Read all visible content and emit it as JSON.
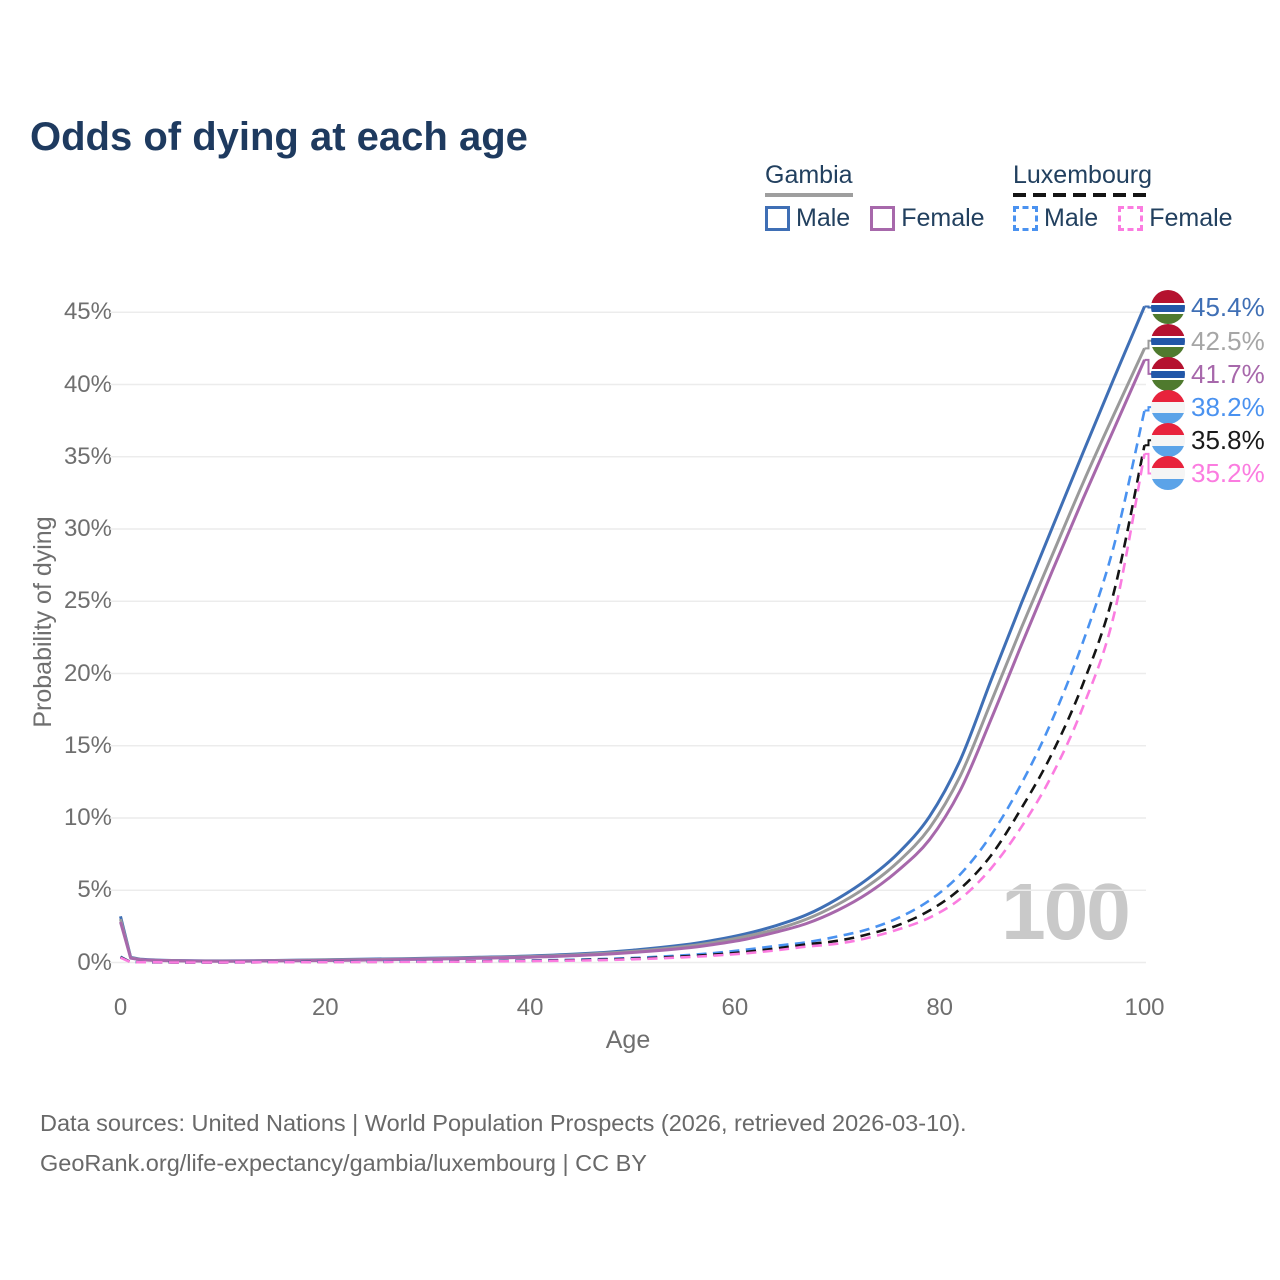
{
  "title": "Odds of dying at each age",
  "watermark": "100",
  "legend": {
    "groups": [
      {
        "label": "Gambia",
        "underline_style": "solid",
        "underline_color": "#9e9e9e",
        "items": [
          {
            "label": "Male",
            "color": "#3f6fb5",
            "dashed": false
          },
          {
            "label": "Female",
            "color": "#a768ab",
            "dashed": false
          }
        ]
      },
      {
        "label": "Luxembourg",
        "underline_style": "dashed",
        "underline_color": "#141414",
        "items": [
          {
            "label": "Male",
            "color": "#4a92f0",
            "dashed": true
          },
          {
            "label": "Female",
            "color": "#fb7ce0",
            "dashed": true
          }
        ]
      }
    ]
  },
  "footer": {
    "line1": "Data sources: United Nations | World Population Prospects (2026, retrieved 2026-03-10).",
    "line2": "GeoRank.org/life-expectancy/gambia/luxembourg | CC BY"
  },
  "flags": {
    "gambia": {
      "stripes": [
        [
          "#b5122f",
          36
        ],
        [
          "#ffffff",
          6
        ],
        [
          "#2257a8",
          21
        ],
        [
          "#ffffff",
          6
        ],
        [
          "#4f7a2e",
          31
        ]
      ]
    },
    "luxembourg": {
      "stripes": [
        [
          "#e8233c",
          34
        ],
        [
          "#f5f5f5",
          33
        ],
        [
          "#5ba3e8",
          33
        ]
      ]
    }
  },
  "chart_data": {
    "type": "line",
    "title": "Odds of dying at each age",
    "xlabel": "Age",
    "ylabel": "Probability of dying",
    "xlim": [
      0,
      100
    ],
    "ylim": [
      0,
      45.4
    ],
    "grid": "horizontal",
    "gridline_color": "#ececec",
    "legend_position": "top-right",
    "x_ticks": [
      {
        "value": 0,
        "label": "0"
      },
      {
        "value": 20,
        "label": "20"
      },
      {
        "value": 40,
        "label": "40"
      },
      {
        "value": 60,
        "label": "60"
      },
      {
        "value": 80,
        "label": "80"
      },
      {
        "value": 100,
        "label": "100"
      }
    ],
    "y_ticks": [
      {
        "value": 0,
        "label": "0%"
      },
      {
        "value": 5,
        "label": "5%"
      },
      {
        "value": 10,
        "label": "10%"
      },
      {
        "value": 15,
        "label": "15%"
      },
      {
        "value": 20,
        "label": "20%"
      },
      {
        "value": 25,
        "label": "25%"
      },
      {
        "value": 30,
        "label": "30%"
      },
      {
        "value": 35,
        "label": "35%"
      },
      {
        "value": 40,
        "label": "40%"
      },
      {
        "value": 45,
        "label": "45%"
      }
    ],
    "ages": [
      0,
      1,
      2,
      5,
      10,
      15,
      20,
      25,
      30,
      35,
      40,
      45,
      50,
      55,
      58,
      61,
      64,
      67,
      70,
      73,
      76,
      79,
      82,
      85,
      88,
      91,
      94,
      97,
      100
    ],
    "series": [
      {
        "name": "Gambia Male",
        "country": "Gambia",
        "sex": "Male",
        "flag": "gambia",
        "color": "#3f6fb5",
        "label_color": "#3f6fb5",
        "dashed": false,
        "end_label": "45.4%",
        "values": [
          3.2,
          0.35,
          0.22,
          0.14,
          0.11,
          0.14,
          0.19,
          0.24,
          0.29,
          0.36,
          0.45,
          0.6,
          0.85,
          1.22,
          1.55,
          1.98,
          2.55,
          3.3,
          4.4,
          5.8,
          7.6,
          10.1,
          14.0,
          19.5,
          24.9,
          30.1,
          35.3,
          40.4,
          45.4
        ]
      },
      {
        "name": "Gambia Both Sexes",
        "country": "Gambia",
        "sex": "Both",
        "flag": "gambia",
        "color": "#9a9a9a",
        "label_color": "#a6a6a6",
        "dashed": false,
        "end_label": "42.5%",
        "values": [
          3.0,
          0.32,
          0.2,
          0.13,
          0.1,
          0.13,
          0.17,
          0.21,
          0.26,
          0.33,
          0.41,
          0.55,
          0.77,
          1.1,
          1.4,
          1.8,
          2.3,
          3.0,
          4.0,
          5.3,
          7.0,
          9.3,
          12.9,
          18.0,
          23.2,
          28.2,
          33.2,
          37.9,
          42.5
        ]
      },
      {
        "name": "Gambia Female",
        "country": "Gambia",
        "sex": "Female",
        "flag": "gambia",
        "color": "#a768ab",
        "label_color": "#a768ab",
        "dashed": false,
        "end_label": "41.7%",
        "values": [
          2.8,
          0.3,
          0.19,
          0.12,
          0.09,
          0.11,
          0.14,
          0.18,
          0.23,
          0.29,
          0.37,
          0.49,
          0.69,
          0.98,
          1.25,
          1.6,
          2.1,
          2.7,
          3.6,
          4.8,
          6.4,
          8.5,
          11.9,
          16.8,
          22.0,
          27.1,
          32.1,
          36.9,
          41.7
        ]
      },
      {
        "name": "Luxembourg Male",
        "country": "Luxembourg",
        "sex": "Male",
        "flag": "luxembourg",
        "color": "#4a92f0",
        "label_color": "#4a92f0",
        "dashed": true,
        "end_label": "38.2%",
        "values": [
          0.4,
          0.03,
          0.02,
          0.01,
          0.01,
          0.03,
          0.06,
          0.07,
          0.08,
          0.1,
          0.14,
          0.2,
          0.31,
          0.5,
          0.66,
          0.88,
          1.15,
          1.4,
          1.8,
          2.3,
          3.1,
          4.3,
          6.1,
          8.8,
          12.4,
          16.8,
          22.2,
          28.8,
          38.2
        ]
      },
      {
        "name": "Luxembourg Both Sexes",
        "country": "Luxembourg",
        "sex": "Both",
        "flag": "luxembourg",
        "color": "#141414",
        "label_color": "#1a1a1a",
        "dashed": true,
        "end_label": "35.8%",
        "values": [
          0.37,
          0.03,
          0.02,
          0.01,
          0.01,
          0.02,
          0.04,
          0.05,
          0.06,
          0.08,
          0.12,
          0.17,
          0.26,
          0.42,
          0.55,
          0.73,
          0.97,
          1.25,
          1.5,
          1.95,
          2.6,
          3.6,
          5.1,
          7.4,
          10.7,
          14.5,
          19.3,
          25.6,
          35.8
        ]
      },
      {
        "name": "Luxembourg Female",
        "country": "Luxembourg",
        "sex": "Female",
        "flag": "luxembourg",
        "color": "#fb7ce0",
        "label_color": "#fb7ce0",
        "dashed": true,
        "end_label": "35.2%",
        "values": [
          0.33,
          0.02,
          0.02,
          0.01,
          0.01,
          0.02,
          0.03,
          0.04,
          0.05,
          0.07,
          0.1,
          0.14,
          0.22,
          0.36,
          0.48,
          0.63,
          0.84,
          1.1,
          1.3,
          1.7,
          2.3,
          3.1,
          4.4,
          6.5,
          9.4,
          13.0,
          17.7,
          24.0,
          35.2
        ]
      }
    ]
  }
}
